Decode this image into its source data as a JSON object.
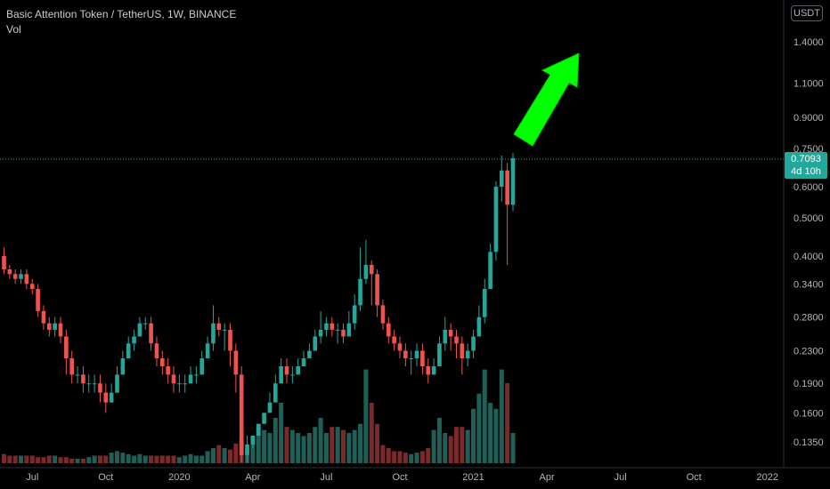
{
  "legend": {
    "symbol": "Basic Attention Token / TetherUS, 1W, BINANCE",
    "indicator": "Vol"
  },
  "price_scale": {
    "currency": "USDT",
    "last_price": "0.7093",
    "countdown": "4d 10h"
  },
  "colors": {
    "background": "#000000",
    "up": "#26a69a",
    "down": "#ef5350",
    "vol_up": "#1f5f58",
    "vol_down": "#7a2a2a",
    "arrow": "#00ff00",
    "last_line": "#26a69a",
    "axis_text": "#b2b5be"
  },
  "chart_data": {
    "type": "candlestick",
    "title": "Basic Attention Token / TetherUS, 1W, BINANCE",
    "y_scale": "log",
    "ylim": [
      0.115,
      1.65
    ],
    "y_ticks": [
      1.4,
      1.1,
      0.9,
      0.75,
      0.6,
      0.5,
      0.4,
      0.34,
      0.28,
      0.23,
      0.19,
      0.16,
      0.135
    ],
    "y_tick_labels": [
      "1.4000",
      "1.1000",
      "0.9000",
      "0.7500",
      "0.6000",
      "0.5000",
      "0.4000",
      "0.3400",
      "0.2800",
      "0.2300",
      "0.1900",
      "0.1600",
      "0.1350"
    ],
    "x_ticks": [
      {
        "label": "Jul",
        "index": 5
      },
      {
        "label": "Oct",
        "index": 18
      },
      {
        "label": "2020",
        "index": 31
      },
      {
        "label": "Apr",
        "index": 44
      },
      {
        "label": "Jul",
        "index": 57
      },
      {
        "label": "Oct",
        "index": 70
      },
      {
        "label": "2021",
        "index": 83
      },
      {
        "label": "Apr",
        "index": 96
      },
      {
        "label": "Jul",
        "index": 109
      },
      {
        "label": "Oct",
        "index": 122
      },
      {
        "label": "2022",
        "index": 135
      }
    ],
    "last_price": 0.7093,
    "close": [
      0.37,
      0.36,
      0.35,
      0.36,
      0.34,
      0.33,
      0.29,
      0.27,
      0.26,
      0.27,
      0.25,
      0.22,
      0.2,
      0.2,
      0.19,
      0.19,
      0.19,
      0.18,
      0.17,
      0.18,
      0.2,
      0.22,
      0.24,
      0.25,
      0.27,
      0.27,
      0.24,
      0.22,
      0.21,
      0.2,
      0.19,
      0.19,
      0.19,
      0.2,
      0.2,
      0.22,
      0.24,
      0.27,
      0.26,
      0.26,
      0.23,
      0.2,
      0.125,
      0.133,
      0.14,
      0.15,
      0.16,
      0.17,
      0.19,
      0.21,
      0.2,
      0.2,
      0.21,
      0.22,
      0.23,
      0.25,
      0.26,
      0.27,
      0.26,
      0.26,
      0.25,
      0.27,
      0.3,
      0.35,
      0.38,
      0.36,
      0.3,
      0.27,
      0.25,
      0.24,
      0.23,
      0.22,
      0.22,
      0.23,
      0.21,
      0.2,
      0.21,
      0.24,
      0.26,
      0.25,
      0.24,
      0.22,
      0.23,
      0.25,
      0.28,
      0.33,
      0.41,
      0.6,
      0.66,
      0.54,
      0.7093
    ],
    "open": [
      0.4,
      0.37,
      0.36,
      0.35,
      0.36,
      0.34,
      0.33,
      0.29,
      0.27,
      0.26,
      0.27,
      0.25,
      0.22,
      0.2,
      0.2,
      0.19,
      0.19,
      0.19,
      0.18,
      0.17,
      0.18,
      0.2,
      0.22,
      0.24,
      0.25,
      0.27,
      0.27,
      0.24,
      0.22,
      0.21,
      0.2,
      0.19,
      0.19,
      0.19,
      0.2,
      0.2,
      0.22,
      0.24,
      0.27,
      0.26,
      0.26,
      0.23,
      0.2,
      0.125,
      0.133,
      0.14,
      0.15,
      0.16,
      0.17,
      0.19,
      0.21,
      0.2,
      0.2,
      0.21,
      0.22,
      0.23,
      0.25,
      0.26,
      0.27,
      0.26,
      0.26,
      0.25,
      0.27,
      0.3,
      0.35,
      0.38,
      0.36,
      0.3,
      0.27,
      0.25,
      0.24,
      0.23,
      0.22,
      0.22,
      0.23,
      0.21,
      0.2,
      0.21,
      0.24,
      0.26,
      0.25,
      0.24,
      0.22,
      0.23,
      0.25,
      0.28,
      0.33,
      0.41,
      0.6,
      0.66,
      0.54
    ],
    "high": [
      0.42,
      0.38,
      0.37,
      0.37,
      0.37,
      0.35,
      0.34,
      0.3,
      0.28,
      0.28,
      0.28,
      0.26,
      0.23,
      0.21,
      0.21,
      0.2,
      0.2,
      0.2,
      0.19,
      0.19,
      0.21,
      0.23,
      0.25,
      0.26,
      0.28,
      0.28,
      0.28,
      0.25,
      0.23,
      0.22,
      0.21,
      0.2,
      0.2,
      0.21,
      0.21,
      0.23,
      0.25,
      0.3,
      0.28,
      0.27,
      0.27,
      0.24,
      0.21,
      0.14,
      0.14,
      0.15,
      0.16,
      0.18,
      0.2,
      0.22,
      0.22,
      0.21,
      0.22,
      0.23,
      0.24,
      0.26,
      0.29,
      0.28,
      0.28,
      0.27,
      0.27,
      0.29,
      0.32,
      0.42,
      0.44,
      0.39,
      0.37,
      0.31,
      0.28,
      0.26,
      0.25,
      0.24,
      0.23,
      0.24,
      0.24,
      0.22,
      0.22,
      0.25,
      0.28,
      0.27,
      0.26,
      0.25,
      0.24,
      0.26,
      0.3,
      0.35,
      0.43,
      0.62,
      0.72,
      0.69,
      0.73
    ],
    "low": [
      0.36,
      0.35,
      0.34,
      0.34,
      0.33,
      0.32,
      0.28,
      0.26,
      0.25,
      0.25,
      0.24,
      0.2,
      0.19,
      0.19,
      0.18,
      0.18,
      0.18,
      0.17,
      0.16,
      0.17,
      0.18,
      0.2,
      0.22,
      0.23,
      0.25,
      0.26,
      0.23,
      0.21,
      0.2,
      0.19,
      0.18,
      0.18,
      0.18,
      0.19,
      0.19,
      0.2,
      0.22,
      0.23,
      0.25,
      0.23,
      0.21,
      0.18,
      0.12,
      0.12,
      0.13,
      0.14,
      0.15,
      0.16,
      0.17,
      0.19,
      0.19,
      0.19,
      0.2,
      0.21,
      0.22,
      0.23,
      0.24,
      0.25,
      0.25,
      0.24,
      0.24,
      0.25,
      0.26,
      0.29,
      0.34,
      0.3,
      0.28,
      0.26,
      0.24,
      0.23,
      0.22,
      0.21,
      0.2,
      0.21,
      0.2,
      0.19,
      0.2,
      0.21,
      0.23,
      0.23,
      0.22,
      0.2,
      0.21,
      0.22,
      0.25,
      0.27,
      0.33,
      0.39,
      0.55,
      0.38,
      0.52
    ],
    "volume": [
      0.06,
      0.05,
      0.05,
      0.05,
      0.05,
      0.05,
      0.04,
      0.04,
      0.05,
      0.05,
      0.04,
      0.04,
      0.03,
      0.03,
      0.03,
      0.04,
      0.05,
      0.05,
      0.05,
      0.07,
      0.08,
      0.07,
      0.06,
      0.05,
      0.06,
      0.05,
      0.05,
      0.05,
      0.05,
      0.05,
      0.05,
      0.04,
      0.05,
      0.06,
      0.05,
      0.05,
      0.08,
      0.1,
      0.12,
      0.1,
      0.09,
      0.13,
      0.16,
      0.1,
      0.18,
      0.26,
      0.22,
      0.2,
      0.3,
      0.4,
      0.24,
      0.22,
      0.2,
      0.18,
      0.2,
      0.24,
      0.3,
      0.2,
      0.24,
      0.24,
      0.22,
      0.2,
      0.22,
      0.26,
      0.62,
      0.4,
      0.26,
      0.12,
      0.1,
      0.08,
      0.08,
      0.07,
      0.06,
      0.07,
      0.08,
      0.1,
      0.22,
      0.3,
      0.2,
      0.18,
      0.24,
      0.24,
      0.22,
      0.36,
      0.46,
      0.62,
      0.4,
      0.36,
      0.62,
      0.53,
      0.2
    ]
  }
}
